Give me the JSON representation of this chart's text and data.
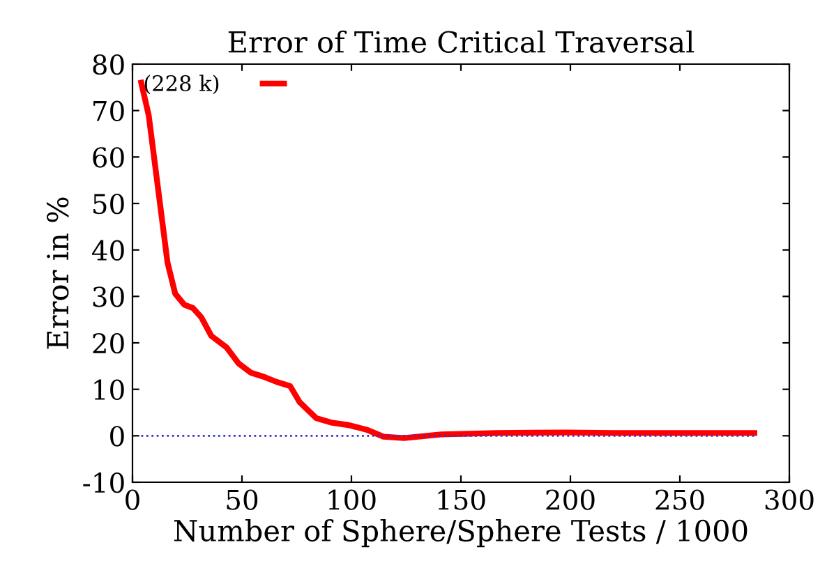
{
  "chart_data": {
    "type": "line",
    "title": "Error of Time Critical Traversal",
    "xlabel": "Number of Sphere/Sphere Tests / 1000",
    "ylabel": "Error in %",
    "series": [
      {
        "name": "(228 k)",
        "color": "#ff0000",
        "x": [
          4,
          7.4,
          16,
          19.5,
          23.7,
          27.6,
          31.4,
          36,
          43,
          48.4,
          54,
          60.5,
          65.8,
          72,
          76.4,
          83.9,
          91.2,
          98.7,
          107,
          114.6,
          124,
          141,
          166.6,
          198,
          219.7,
          284
        ],
        "values": [
          76,
          69,
          37.3,
          30.6,
          28.2,
          27.5,
          25.5,
          21.5,
          19,
          15.6,
          13.6,
          12.6,
          11.6,
          10.7,
          7.2,
          3.8,
          2.8,
          2.3,
          1.3,
          -0.2,
          -0.5,
          0.3,
          0.6,
          0.7,
          0.6,
          0.6
        ]
      },
      {
        "color": "#3333cc",
        "line_style": "dotted",
        "x": [
          4,
          284
        ],
        "values": [
          0,
          0
        ]
      }
    ],
    "xlim": [
      0,
      300
    ],
    "xticks": [
      0,
      50,
      100,
      150,
      200,
      250,
      300
    ],
    "ylim": [
      -10,
      80
    ],
    "yticks": [
      -10,
      0,
      10,
      20,
      30,
      40,
      50,
      60,
      70,
      80
    ],
    "grid": false,
    "legend": "top left",
    "marker": "none"
  }
}
